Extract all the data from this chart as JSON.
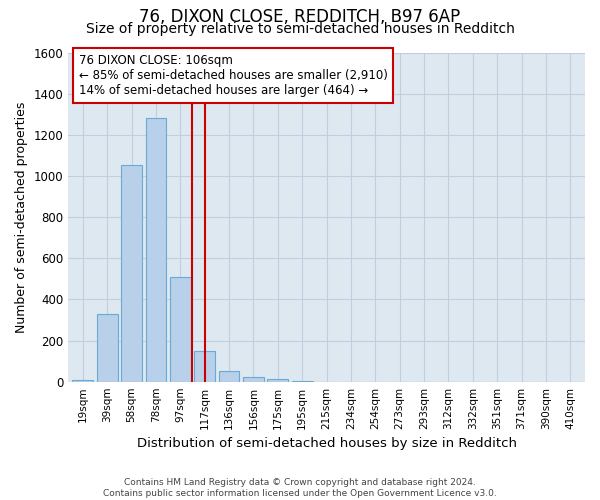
{
  "title": "76, DIXON CLOSE, REDDITCH, B97 6AP",
  "subtitle": "Size of property relative to semi-detached houses in Redditch",
  "xlabel": "Distribution of semi-detached houses by size in Redditch",
  "ylabel": "Number of semi-detached properties",
  "footnote": "Contains HM Land Registry data © Crown copyright and database right 2024.\nContains public sector information licensed under the Open Government Licence v3.0.",
  "bin_labels": [
    "19sqm",
    "39sqm",
    "58sqm",
    "78sqm",
    "97sqm",
    "117sqm",
    "136sqm",
    "156sqm",
    "175sqm",
    "195sqm",
    "215sqm",
    "234sqm",
    "254sqm",
    "273sqm",
    "293sqm",
    "312sqm",
    "332sqm",
    "351sqm",
    "371sqm",
    "390sqm",
    "410sqm"
  ],
  "counts": [
    10,
    330,
    1055,
    1280,
    510,
    150,
    50,
    25,
    15,
    5,
    0,
    0,
    0,
    0,
    0,
    0,
    0,
    0,
    0,
    0,
    0
  ],
  "bar_color": "#b8d0ea",
  "bar_edge_color": "#6aaad4",
  "vline_x": 5,
  "vline_color": "#cc0000",
  "annotation_text": "76 DIXON CLOSE: 106sqm\n← 85% of semi-detached houses are smaller (2,910)\n14% of semi-detached houses are larger (464) →",
  "annotation_box_color": "white",
  "annotation_box_edge_color": "#cc0000",
  "annotation_fontsize": 8.5,
  "title_fontsize": 12,
  "subtitle_fontsize": 10,
  "ylim": [
    0,
    1600
  ],
  "yticks": [
    0,
    200,
    400,
    600,
    800,
    1000,
    1200,
    1400,
    1600
  ],
  "grid_color": "#c0cfdf",
  "plot_background": "#dde8f0",
  "fig_background": "white"
}
